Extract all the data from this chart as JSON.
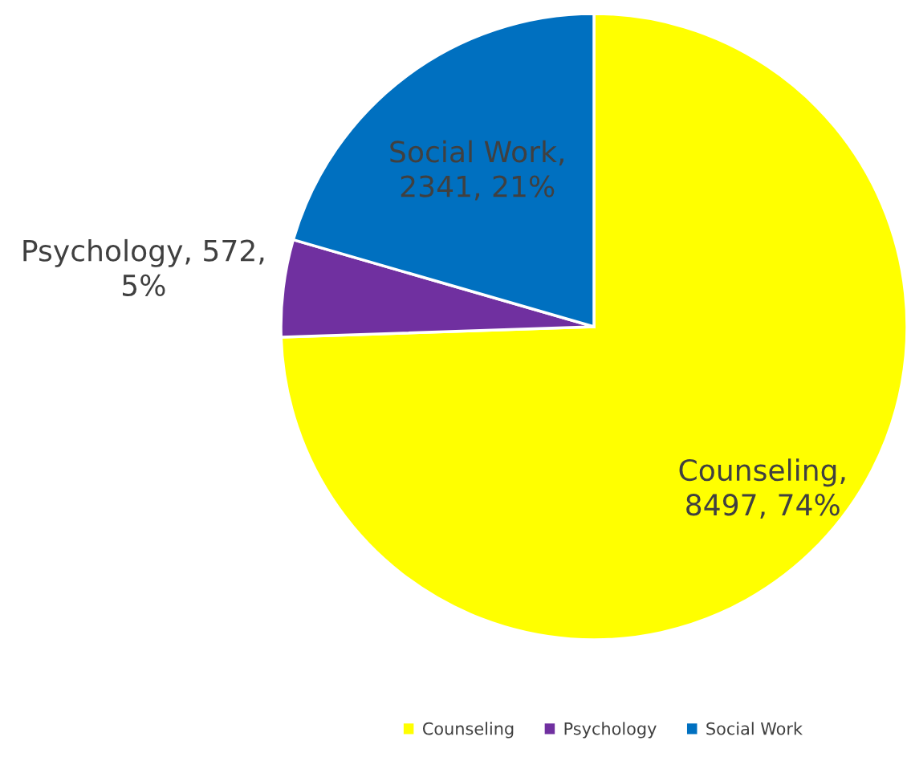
{
  "chart_data": {
    "type": "pie",
    "categories": [
      "Counseling",
      "Psychology",
      "Social Work"
    ],
    "values": [
      8497,
      572,
      2341
    ],
    "colors": [
      "#ffff00",
      "#7030a0",
      "#0070c0"
    ],
    "value_labels": [
      "Counseling,\n8497, 74%",
      "Psychology, 572,\n5%",
      "Social Work,\n2341, 21%"
    ],
    "legend": "bottom"
  }
}
